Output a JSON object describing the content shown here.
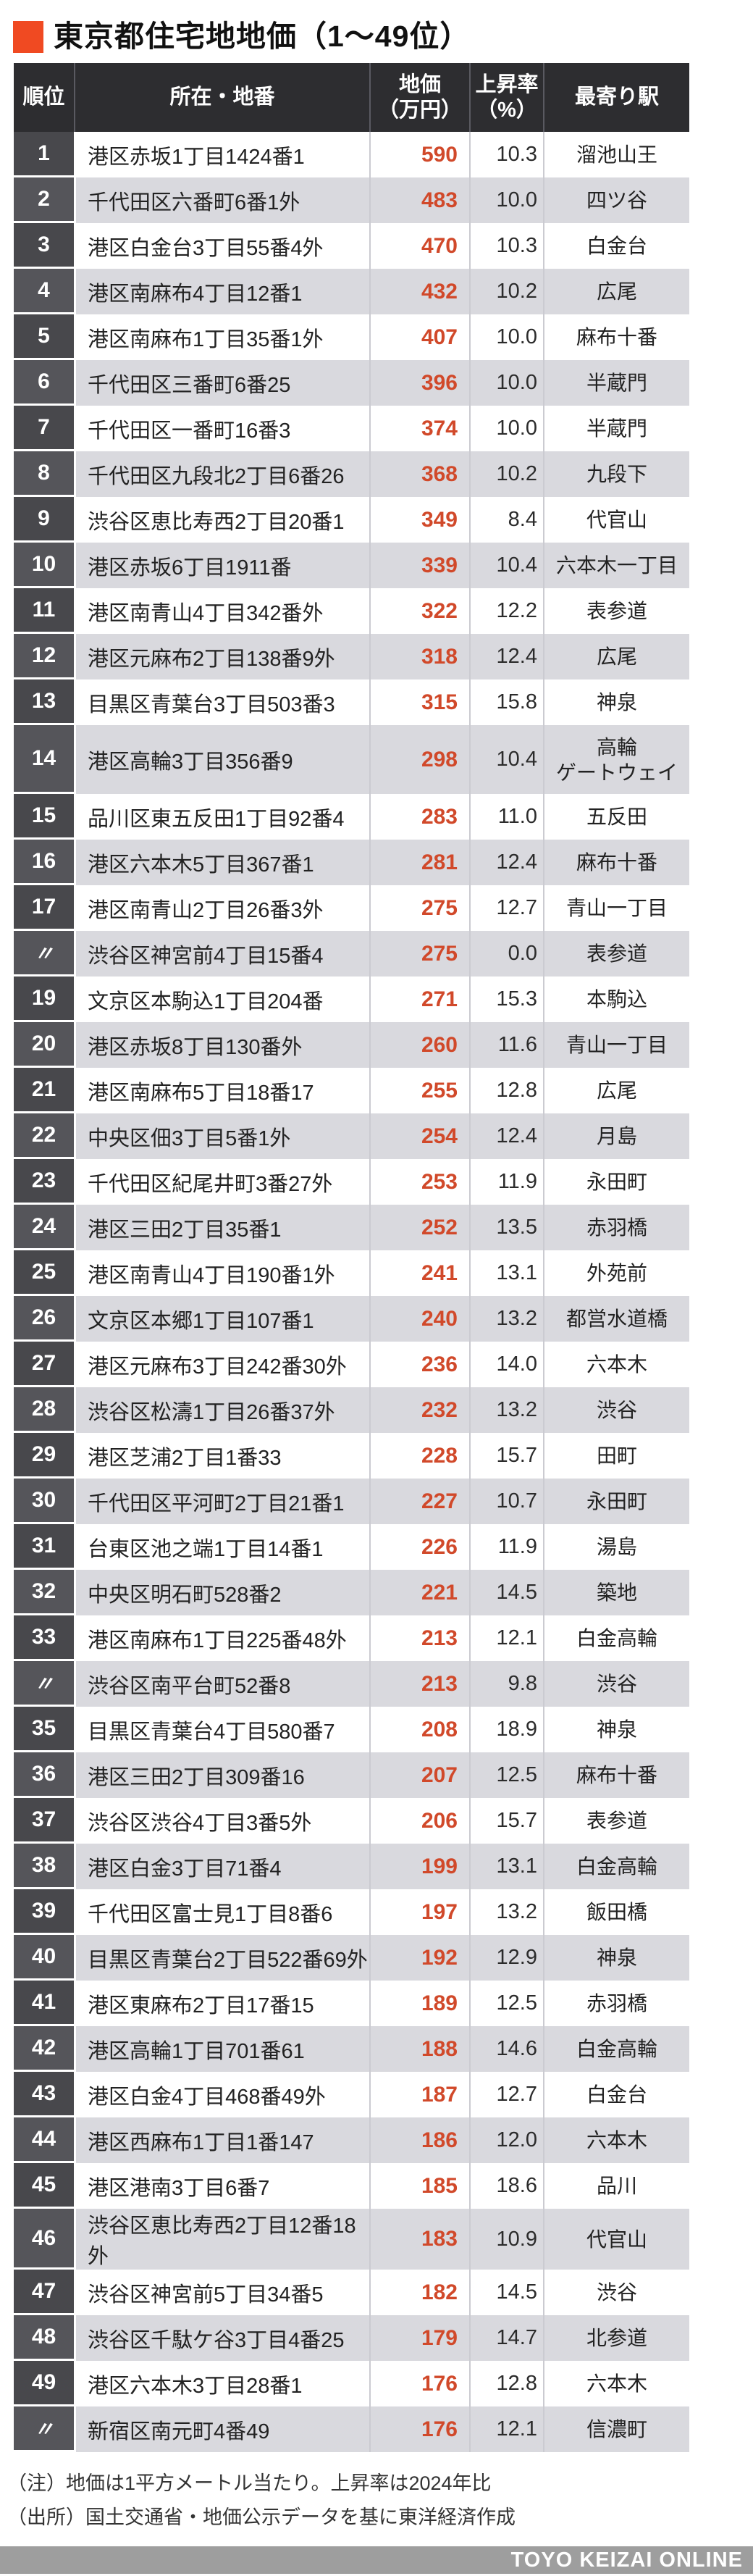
{
  "title": "東京都住宅地地価（1～49位）",
  "colors": {
    "accent": "#f04a22",
    "price": "#d1492a",
    "header_bg": "#2d2d30",
    "rank_bg_odd": "#48484c",
    "rank_bg_even": "#55555a",
    "row_bg_even": "#d9d9de",
    "footer_bar_bg": "#9e9e9e"
  },
  "table": {
    "headers": {
      "rank": "順位",
      "location": "所在・地番",
      "price_line1": "地価",
      "price_line2": "（万円）",
      "rate_line1": "上昇率",
      "rate_line2": "（%）",
      "station": "最寄り駅"
    }
  },
  "notes": [
    "（注）地価は1平方メートル当たり。上昇率は2024年比",
    "（出所）国土交通省・地価公示データを基に東洋経済作成"
  ],
  "footer_bar": "TOYO KEIZAI ONLINE",
  "chart_data": {
    "type": "table",
    "title": "東京都住宅地地価（1～49位）",
    "columns": [
      "順位",
      "所在・地番",
      "地価（万円）",
      "上昇率（%）",
      "最寄り駅"
    ],
    "rows": [
      {
        "rank": "1",
        "location": "港区赤坂1丁目1424番1",
        "price": 590,
        "rate": "10.3",
        "station": "溜池山王"
      },
      {
        "rank": "2",
        "location": "千代田区六番町6番1外",
        "price": 483,
        "rate": "10.0",
        "station": "四ツ谷"
      },
      {
        "rank": "3",
        "location": "港区白金台3丁目55番4外",
        "price": 470,
        "rate": "10.3",
        "station": "白金台"
      },
      {
        "rank": "4",
        "location": "港区南麻布4丁目12番1",
        "price": 432,
        "rate": "10.2",
        "station": "広尾"
      },
      {
        "rank": "5",
        "location": "港区南麻布1丁目35番1外",
        "price": 407,
        "rate": "10.0",
        "station": "麻布十番"
      },
      {
        "rank": "6",
        "location": "千代田区三番町6番25",
        "price": 396,
        "rate": "10.0",
        "station": "半蔵門"
      },
      {
        "rank": "7",
        "location": "千代田区一番町16番3",
        "price": 374,
        "rate": "10.0",
        "station": "半蔵門"
      },
      {
        "rank": "8",
        "location": "千代田区九段北2丁目6番26",
        "price": 368,
        "rate": "10.2",
        "station": "九段下"
      },
      {
        "rank": "9",
        "location": "渋谷区恵比寿西2丁目20番1",
        "price": 349,
        "rate": "8.4",
        "station": "代官山"
      },
      {
        "rank": "10",
        "location": "港区赤坂6丁目1911番",
        "price": 339,
        "rate": "10.4",
        "station": "六本木一丁目"
      },
      {
        "rank": "11",
        "location": "港区南青山4丁目342番外",
        "price": 322,
        "rate": "12.2",
        "station": "表参道"
      },
      {
        "rank": "12",
        "location": "港区元麻布2丁目138番9外",
        "price": 318,
        "rate": "12.4",
        "station": "広尾"
      },
      {
        "rank": "13",
        "location": "目黒区青葉台3丁目503番3",
        "price": 315,
        "rate": "15.8",
        "station": "神泉"
      },
      {
        "rank": "14",
        "location": "港区高輪3丁目356番9",
        "price": 298,
        "rate": "10.4",
        "station": [
          "高輪",
          "ゲートウェイ"
        ]
      },
      {
        "rank": "15",
        "location": "品川区東五反田1丁目92番4",
        "price": 283,
        "rate": "11.0",
        "station": "五反田"
      },
      {
        "rank": "16",
        "location": "港区六本木5丁目367番1",
        "price": 281,
        "rate": "12.4",
        "station": "麻布十番"
      },
      {
        "rank": "17",
        "location": "港区南青山2丁目26番3外",
        "price": 275,
        "rate": "12.7",
        "station": "青山一丁目"
      },
      {
        "rank": "〃",
        "location": "渋谷区神宮前4丁目15番4",
        "price": 275,
        "rate": "0.0",
        "station": "表参道"
      },
      {
        "rank": "19",
        "location": "文京区本駒込1丁目204番",
        "price": 271,
        "rate": "15.3",
        "station": "本駒込"
      },
      {
        "rank": "20",
        "location": "港区赤坂8丁目130番外",
        "price": 260,
        "rate": "11.6",
        "station": "青山一丁目"
      },
      {
        "rank": "21",
        "location": "港区南麻布5丁目18番17",
        "price": 255,
        "rate": "12.8",
        "station": "広尾"
      },
      {
        "rank": "22",
        "location": "中央区佃3丁目5番1外",
        "price": 254,
        "rate": "12.4",
        "station": "月島"
      },
      {
        "rank": "23",
        "location": "千代田区紀尾井町3番27外",
        "price": 253,
        "rate": "11.9",
        "station": "永田町"
      },
      {
        "rank": "24",
        "location": "港区三田2丁目35番1",
        "price": 252,
        "rate": "13.5",
        "station": "赤羽橋"
      },
      {
        "rank": "25",
        "location": "港区南青山4丁目190番1外",
        "price": 241,
        "rate": "13.1",
        "station": "外苑前"
      },
      {
        "rank": "26",
        "location": "文京区本郷1丁目107番1",
        "price": 240,
        "rate": "13.2",
        "station": "都営水道橋"
      },
      {
        "rank": "27",
        "location": "港区元麻布3丁目242番30外",
        "price": 236,
        "rate": "14.0",
        "station": "六本木"
      },
      {
        "rank": "28",
        "location": "渋谷区松濤1丁目26番37外",
        "price": 232,
        "rate": "13.2",
        "station": "渋谷"
      },
      {
        "rank": "29",
        "location": "港区芝浦2丁目1番33",
        "price": 228,
        "rate": "15.7",
        "station": "田町"
      },
      {
        "rank": "30",
        "location": "千代田区平河町2丁目21番1",
        "price": 227,
        "rate": "10.7",
        "station": "永田町"
      },
      {
        "rank": "31",
        "location": "台東区池之端1丁目14番1",
        "price": 226,
        "rate": "11.9",
        "station": "湯島"
      },
      {
        "rank": "32",
        "location": "中央区明石町528番2",
        "price": 221,
        "rate": "14.5",
        "station": "築地"
      },
      {
        "rank": "33",
        "location": "港区南麻布1丁目225番48外",
        "price": 213,
        "rate": "12.1",
        "station": "白金高輪"
      },
      {
        "rank": "〃",
        "location": "渋谷区南平台町52番8",
        "price": 213,
        "rate": "9.8",
        "station": "渋谷"
      },
      {
        "rank": "35",
        "location": "目黒区青葉台4丁目580番7",
        "price": 208,
        "rate": "18.9",
        "station": "神泉"
      },
      {
        "rank": "36",
        "location": "港区三田2丁目309番16",
        "price": 207,
        "rate": "12.5",
        "station": "麻布十番"
      },
      {
        "rank": "37",
        "location": "渋谷区渋谷4丁目3番5外",
        "price": 206,
        "rate": "15.7",
        "station": "表参道"
      },
      {
        "rank": "38",
        "location": "港区白金3丁目71番4",
        "price": 199,
        "rate": "13.1",
        "station": "白金高輪"
      },
      {
        "rank": "39",
        "location": "千代田区富士見1丁目8番6",
        "price": 197,
        "rate": "13.2",
        "station": "飯田橋"
      },
      {
        "rank": "40",
        "location": "目黒区青葉台2丁目522番69外",
        "price": 192,
        "rate": "12.9",
        "station": "神泉"
      },
      {
        "rank": "41",
        "location": "港区東麻布2丁目17番15",
        "price": 189,
        "rate": "12.5",
        "station": "赤羽橋"
      },
      {
        "rank": "42",
        "location": "港区高輪1丁目701番61",
        "price": 188,
        "rate": "14.6",
        "station": "白金高輪"
      },
      {
        "rank": "43",
        "location": "港区白金4丁目468番49外",
        "price": 187,
        "rate": "12.7",
        "station": "白金台"
      },
      {
        "rank": "44",
        "location": "港区西麻布1丁目1番147",
        "price": 186,
        "rate": "12.0",
        "station": "六本木"
      },
      {
        "rank": "45",
        "location": "港区港南3丁目6番7",
        "price": 185,
        "rate": "18.6",
        "station": "品川"
      },
      {
        "rank": "46",
        "location": "渋谷区恵比寿西2丁目12番18外",
        "price": 183,
        "rate": "10.9",
        "station": "代官山"
      },
      {
        "rank": "47",
        "location": "渋谷区神宮前5丁目34番5",
        "price": 182,
        "rate": "14.5",
        "station": "渋谷"
      },
      {
        "rank": "48",
        "location": "渋谷区千駄ケ谷3丁目4番25",
        "price": 179,
        "rate": "14.7",
        "station": "北参道"
      },
      {
        "rank": "49",
        "location": "港区六本木3丁目28番1",
        "price": 176,
        "rate": "12.8",
        "station": "六本木"
      },
      {
        "rank": "〃",
        "location": "新宿区南元町4番49",
        "price": 176,
        "rate": "12.1",
        "station": "信濃町"
      }
    ]
  }
}
